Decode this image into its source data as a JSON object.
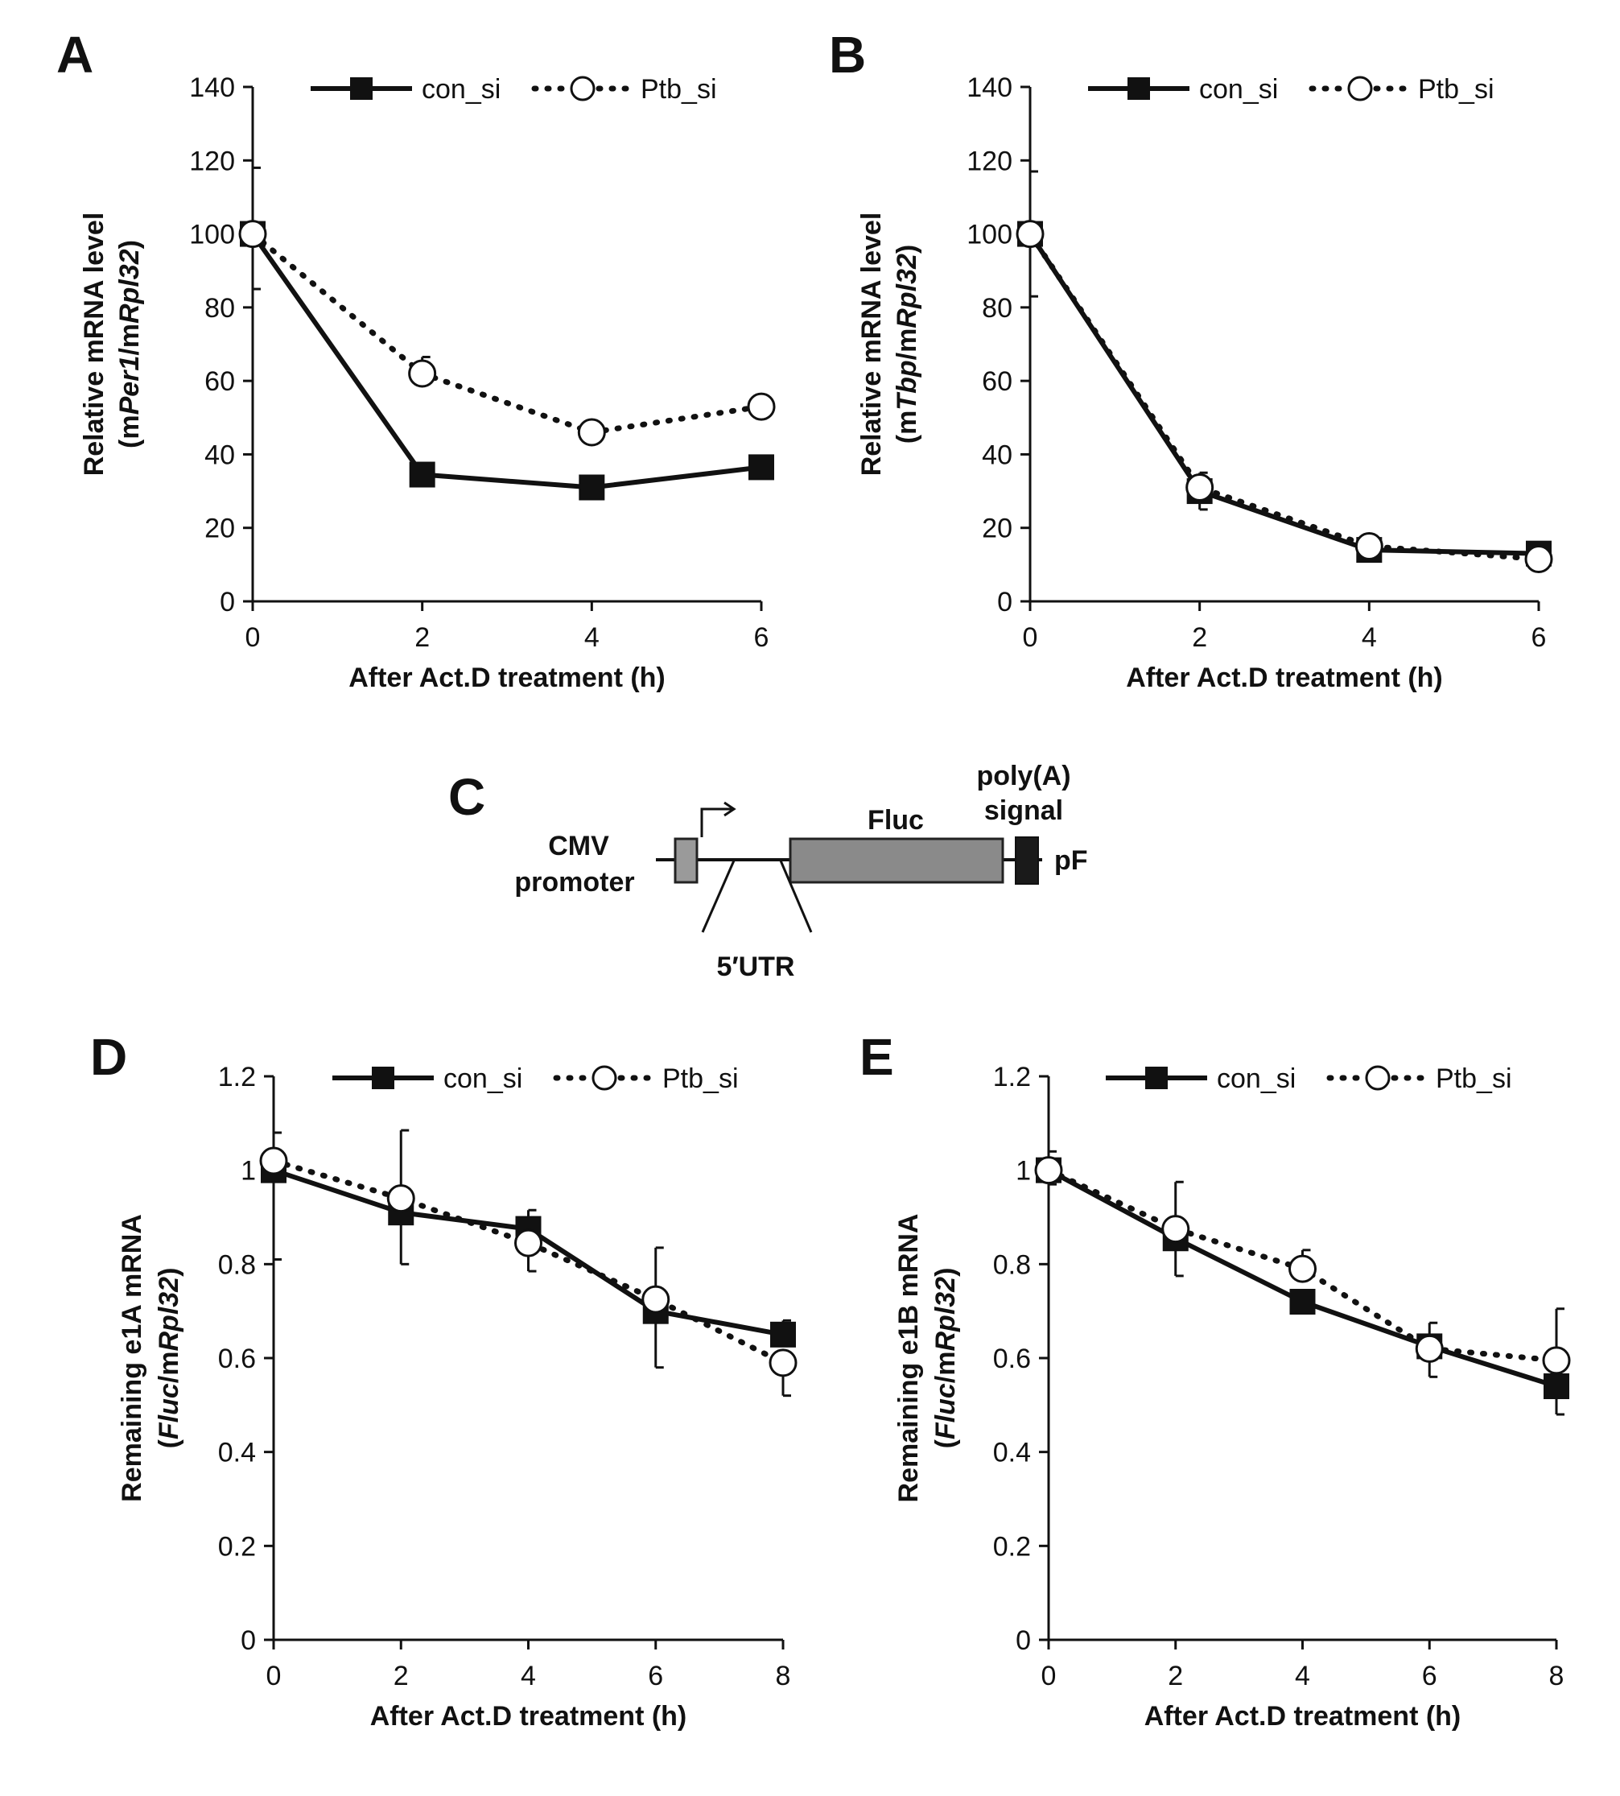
{
  "figure_panels": [
    "A",
    "B",
    "C",
    "D",
    "E"
  ],
  "chart_data": [
    {
      "panel": "A",
      "type": "line",
      "title": "",
      "xlabel": "After Act.D treatment (h)",
      "ylabel_line1": "Relative mRNA level",
      "ylabel_line2": {
        "p1": "(m",
        "p2": "Per1",
        "p3": "/m",
        "p4": "Rpl32",
        "p5": ")"
      },
      "x": [
        0,
        2,
        4,
        6
      ],
      "xlim": [
        0,
        6
      ],
      "ylim": [
        0,
        140
      ],
      "xticks": [
        "0",
        "2",
        "4",
        "6"
      ],
      "yticks": [
        "0",
        "20",
        "40",
        "60",
        "80",
        "100",
        "120",
        "140"
      ],
      "legend_position": "top-right",
      "series": [
        {
          "name": "con_si",
          "style": "solid",
          "marker": "filled-square",
          "values": [
            100,
            34.5,
            31,
            36.5
          ],
          "error": [
            18,
            1.5,
            2,
            1.5
          ]
        },
        {
          "name": "Ptb_si",
          "style": "dotted",
          "marker": "open-circle",
          "values": [
            100,
            62,
            46,
            53
          ],
          "error": [
            15,
            4.5,
            1.5,
            1.5
          ]
        }
      ]
    },
    {
      "panel": "B",
      "type": "line",
      "title": "",
      "xlabel": "After Act.D treatment (h)",
      "ylabel_line1": "Relative mRNA level",
      "ylabel_line2": {
        "p1": "(m",
        "p2": "Tbp",
        "p3": "/m",
        "p4": "Rpl32",
        "p5": ")"
      },
      "x": [
        0,
        2,
        4,
        6
      ],
      "xlim": [
        0,
        6
      ],
      "ylim": [
        0,
        140
      ],
      "xticks": [
        "0",
        "2",
        "4",
        "6"
      ],
      "yticks": [
        "0",
        "20",
        "40",
        "60",
        "80",
        "100",
        "120",
        "140"
      ],
      "legend_position": "top-right",
      "series": [
        {
          "name": "con_si",
          "style": "solid",
          "marker": "filled-square",
          "values": [
            100,
            30,
            14,
            13
          ],
          "error": [
            17,
            5,
            2,
            1
          ]
        },
        {
          "name": "Ptb_si",
          "style": "dotted",
          "marker": "open-circle",
          "values": [
            100,
            31,
            15,
            11.5
          ],
          "error": [
            17,
            4,
            2,
            1
          ]
        }
      ]
    },
    {
      "panel": "D",
      "type": "line",
      "title": "",
      "xlabel": "After Act.D treatment (h)",
      "ylabel_line1": "Remaining e1A mRNA",
      "ylabel_line2": {
        "p1": "(",
        "p2": "Fluc",
        "p3": "/m",
        "p4": "Rpl32",
        "p5": ")"
      },
      "x": [
        0,
        2,
        4,
        6,
        8
      ],
      "xlim": [
        0,
        8
      ],
      "ylim": [
        0,
        1.2
      ],
      "xticks": [
        "0",
        "2",
        "4",
        "6",
        "8"
      ],
      "yticks": [
        "0",
        "0.2",
        "0.4",
        "0.6",
        "0.8",
        "1",
        "1.2"
      ],
      "legend_position": "top-right",
      "series": [
        {
          "name": "con_si",
          "style": "solid",
          "marker": "filled-square",
          "values": [
            1.0,
            0.91,
            0.875,
            0.7,
            0.65
          ],
          "error": [
            0.19,
            0.11,
            0.04,
            0.12,
            0.03
          ]
        },
        {
          "name": "Ptb_si",
          "style": "dotted",
          "marker": "open-circle",
          "values": [
            1.02,
            0.94,
            0.845,
            0.725,
            0.59
          ],
          "error": [
            0.06,
            0.145,
            0.06,
            0.11,
            0.07
          ]
        }
      ]
    },
    {
      "panel": "E",
      "type": "line",
      "title": "",
      "xlabel": "After Act.D treatment (h)",
      "ylabel_line1": "Remaining e1B mRNA",
      "ylabel_line2": {
        "p1": "(",
        "p2": "Fluc",
        "p3": "/m",
        "p4": "Rpl32",
        "p5": ")"
      },
      "x": [
        0,
        2,
        4,
        6,
        8
      ],
      "xlim": [
        0,
        8
      ],
      "ylim": [
        0,
        1.2
      ],
      "xticks": [
        "0",
        "2",
        "4",
        "6",
        "8"
      ],
      "yticks": [
        "0",
        "0.2",
        "0.4",
        "0.6",
        "0.8",
        "1",
        "1.2"
      ],
      "legend_position": "top-right",
      "series": [
        {
          "name": "con_si",
          "style": "solid",
          "marker": "filled-square",
          "values": [
            1.0,
            0.855,
            0.72,
            0.625,
            0.54
          ],
          "error": [
            0.04,
            0.08,
            0.02,
            0.05,
            0.06
          ]
        },
        {
          "name": "Ptb_si",
          "style": "dotted",
          "marker": "open-circle",
          "values": [
            1.0,
            0.875,
            0.79,
            0.62,
            0.595
          ],
          "error": [
            0.03,
            0.1,
            0.04,
            0.06,
            0.11
          ]
        }
      ]
    }
  ],
  "diagram": {
    "panel": "C",
    "cmv_line1": "CMV",
    "cmv_line2": "promoter",
    "fluc": "Fluc",
    "polya_line1": "poly(A)",
    "polya_line2": "signal",
    "pf": "pF",
    "utr": "5′UTR"
  }
}
